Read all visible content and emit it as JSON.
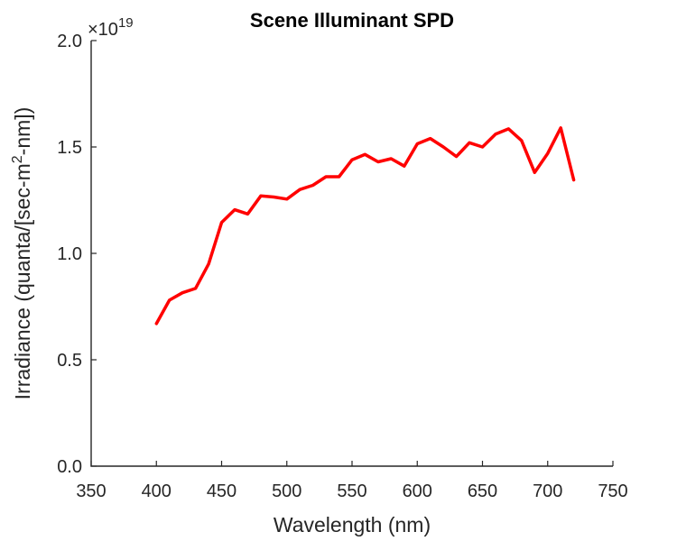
{
  "chart_data": {
    "type": "line",
    "title": "Scene Illuminant SPD",
    "xlabel": "Wavelength (nm)",
    "ylabel": "Irradiance (quanta/[sec-m",
    "ylabel_sup": "2",
    "ylabel_tail": "-nm])",
    "y_exponent_base": "×10",
    "y_exponent_power": "19",
    "xlim": [
      350,
      750
    ],
    "ylim": [
      0,
      2.0
    ],
    "xticks": [
      350,
      400,
      450,
      500,
      550,
      600,
      650,
      700,
      750
    ],
    "xtick_labels": [
      "350",
      "400",
      "450",
      "500",
      "550",
      "600",
      "650",
      "700",
      "750"
    ],
    "yticks": [
      0,
      0.5,
      1.0,
      1.5,
      2.0
    ],
    "ytick_labels": [
      "0.0",
      "0.5",
      "1.0",
      "1.5",
      "2.0"
    ],
    "grid": false,
    "color": "#ff0000",
    "series": [
      {
        "x": [
          400,
          410,
          420,
          430,
          440,
          450,
          460,
          470,
          480,
          490,
          500,
          510,
          520,
          530,
          540,
          550,
          560,
          570,
          580,
          590,
          600,
          610,
          620,
          630,
          640,
          650,
          660,
          670,
          680,
          690,
          700,
          710,
          720
        ],
        "values": [
          0.67,
          0.78,
          0.815,
          0.835,
          0.95,
          1.145,
          1.205,
          1.185,
          1.27,
          1.265,
          1.255,
          1.3,
          1.32,
          1.36,
          1.36,
          1.44,
          1.465,
          1.43,
          1.445,
          1.41,
          1.515,
          1.54,
          1.5,
          1.455,
          1.52,
          1.5,
          1.56,
          1.585,
          1.53,
          1.38,
          1.47,
          1.59,
          1.345
        ]
      }
    ]
  }
}
